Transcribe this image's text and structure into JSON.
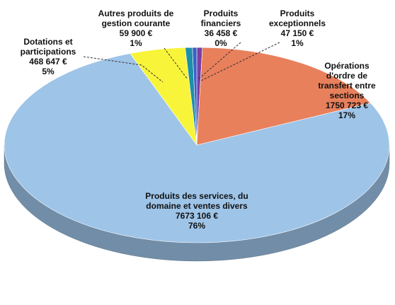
{
  "chart_data": {
    "type": "pie",
    "labels": [
      [
        "Produits",
        "exceptionnels"
      ],
      [
        "Opérations",
        "d'ordre de",
        "transfert entre",
        "sections"
      ],
      [
        "Produits des services, du",
        "domaine et ventes divers"
      ],
      [
        "Dotations et",
        "participations"
      ],
      [
        "Autres produits de",
        "gestion courante"
      ],
      [
        "Produits",
        "financiers"
      ]
    ],
    "values": [
      47150,
      1750723,
      7673106,
      468647,
      59900,
      36458
    ],
    "value_labels": [
      "47 150 €",
      "1750 723 €",
      "7673 106 €",
      "468 647 €",
      "59 900 €",
      "36 458 €"
    ],
    "percents": [
      1,
      17,
      76,
      5,
      1,
      0
    ],
    "percent_labels": [
      "1%",
      "17%",
      "76%",
      "5%",
      "1%",
      "0%"
    ],
    "colors": [
      "#7b3f9e",
      "#e8805c",
      "#9ec4e8",
      "#f8f43a",
      "#1e8fa8",
      "#3b5fc8"
    ]
  }
}
